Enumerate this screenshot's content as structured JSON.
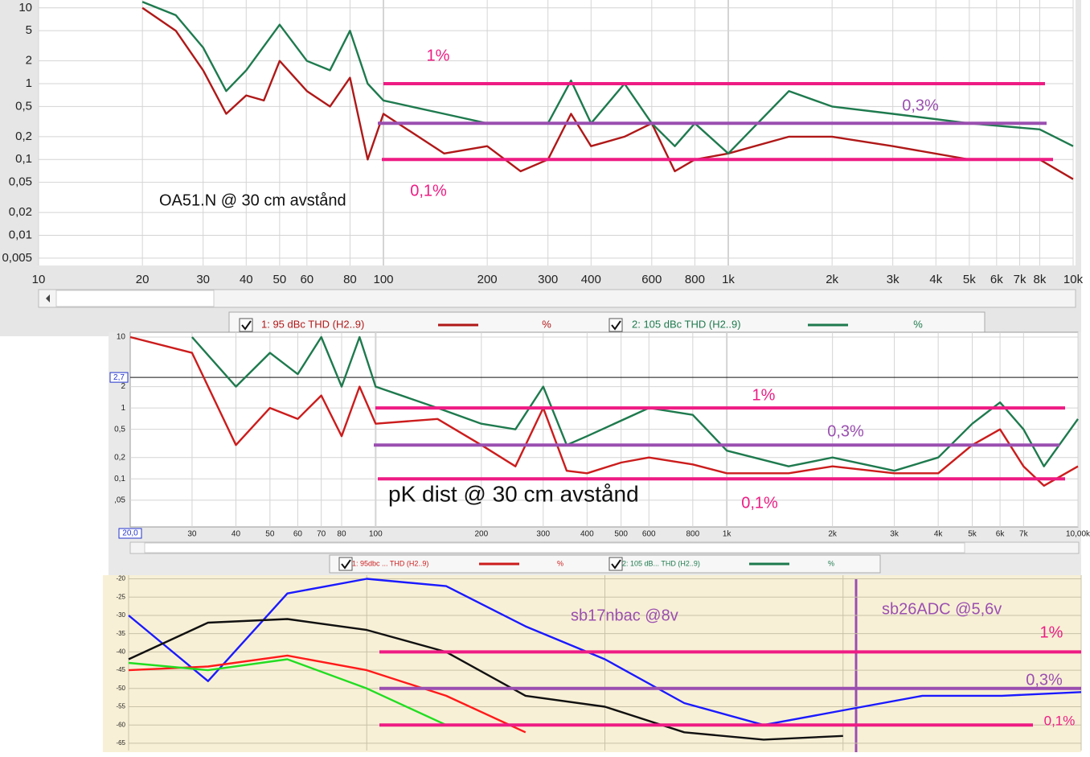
{
  "chart_data": [
    {
      "type": "line",
      "xscale": "log",
      "yscale": "log",
      "grid": true,
      "xlim": [
        10,
        10000
      ],
      "ylim": [
        0.004,
        12.7
      ],
      "xticks": [
        10,
        20,
        30,
        40,
        50,
        60,
        80,
        100,
        200,
        300,
        400,
        600,
        800,
        {
          "value": 1000,
          "label": "1k"
        },
        {
          "value": 2000,
          "label": "2k"
        },
        {
          "value": 3000,
          "label": "3k"
        },
        {
          "value": 4000,
          "label": "4k"
        },
        {
          "value": 5000,
          "label": "5k"
        },
        {
          "value": 6000,
          "label": "6k"
        },
        {
          "value": 7000,
          "label": "7k"
        },
        {
          "value": 8000,
          "label": "8k"
        },
        {
          "value": 10000,
          "label": "10k"
        }
      ],
      "yticks": [
        10,
        5,
        2,
        1,
        {
          "value": 0.5,
          "label": "0,5"
        },
        {
          "value": 0.2,
          "label": "0,2"
        },
        {
          "value": 0.1,
          "label": "0,1"
        },
        {
          "value": 0.05,
          "label": "0,05"
        },
        {
          "value": 0.02,
          "label": "0,02"
        },
        {
          "value": 0.01,
          "label": "0,01"
        },
        {
          "value": 0.005,
          "label": "0,005"
        }
      ],
      "series": [
        {
          "name": "1: 95 dBc THD (H2..9)",
          "unit": "%",
          "color": "#b01818",
          "x": [
            20,
            25,
            30,
            35,
            40,
            45,
            50,
            60,
            70,
            80,
            90,
            100,
            150,
            200,
            250,
            300,
            350,
            400,
            500,
            600,
            700,
            800,
            1000,
            1500,
            2000,
            3000,
            5000,
            8000,
            10000
          ],
          "values": [
            10,
            5,
            1.5,
            0.4,
            0.7,
            0.6,
            2,
            0.8,
            0.5,
            1.2,
            0.1,
            0.4,
            0.12,
            0.15,
            0.07,
            0.1,
            0.4,
            0.15,
            0.2,
            0.3,
            0.07,
            0.1,
            0.12,
            0.2,
            0.2,
            0.15,
            0.1,
            0.1,
            0.055
          ]
        },
        {
          "name": "2: 105 dBc THD (H2..9)",
          "unit": "%",
          "color": "#1e7a4e",
          "x": [
            20,
            25,
            30,
            35,
            40,
            50,
            60,
            70,
            80,
            90,
            100,
            150,
            200,
            300,
            350,
            400,
            500,
            600,
            700,
            800,
            1000,
            1500,
            2000,
            3000,
            5000,
            8000,
            10000
          ],
          "values": [
            12,
            8,
            3,
            0.8,
            1.5,
            6,
            2,
            1.5,
            5,
            1,
            0.6,
            0.4,
            0.3,
            0.3,
            1.1,
            0.3,
            1,
            0.3,
            0.15,
            0.3,
            0.12,
            0.8,
            0.5,
            0.4,
            0.3,
            0.25,
            0.15
          ]
        }
      ],
      "ref_lines": [
        {
          "value": 1,
          "color": "#ee1c84"
        },
        {
          "value": 0.3,
          "color": "#9b4fb0"
        },
        {
          "value": 0.1,
          "color": "#ee1c84"
        }
      ],
      "annotations": [
        "1%",
        "0,3%",
        "0,1%",
        "OA51.N @ 30 cm avstånd"
      ]
    },
    {
      "type": "line",
      "xscale": "log",
      "yscale": "log",
      "grid": true,
      "xlim": [
        20,
        10000
      ],
      "ylim": [
        0.021,
        11.7
      ],
      "xticks": [
        30,
        40,
        50,
        60,
        70,
        80,
        100,
        200,
        300,
        400,
        500,
        600,
        800,
        {
          "value": 1000,
          "label": "1k"
        },
        {
          "value": 2000,
          "label": "2k"
        },
        {
          "value": 3000,
          "label": "3k"
        },
        {
          "value": 4000,
          "label": "4k"
        },
        {
          "value": 5000,
          "label": "5k"
        },
        {
          "value": 6000,
          "label": "6k"
        },
        {
          "value": 7000,
          "label": "7k"
        },
        {
          "value": 10000,
          "label": "10,00k"
        }
      ],
      "yticks": [
        10,
        2,
        1,
        {
          "value": 0.5,
          "label": "0,5"
        },
        {
          "value": 0.2,
          "label": "0,2"
        },
        {
          "value": 0.1,
          "label": "0,1"
        },
        {
          "value": 0.05,
          "label": ",05"
        }
      ],
      "cursor": {
        "value": 2.7,
        "label": "2,7"
      },
      "x_start_label": "20,0",
      "series": [
        {
          "name": "1: 95dbc ... THD (H2..9)",
          "unit": "%",
          "color": "#cc1c1c",
          "x": [
            20,
            30,
            40,
            50,
            60,
            70,
            80,
            90,
            100,
            150,
            200,
            250,
            300,
            350,
            400,
            500,
            600,
            800,
            1000,
            1500,
            2000,
            3000,
            4000,
            5000,
            6000,
            7000,
            8000,
            10000
          ],
          "values": [
            10,
            6,
            0.3,
            1,
            0.7,
            1.5,
            0.4,
            2,
            0.6,
            0.7,
            0.3,
            0.15,
            1,
            0.13,
            0.12,
            0.17,
            0.2,
            0.16,
            0.12,
            0.12,
            0.15,
            0.12,
            0.12,
            0.3,
            0.5,
            0.15,
            0.08,
            0.15
          ]
        },
        {
          "name": "2: 105 dB... THD (H2..9)",
          "unit": "%",
          "color": "#1e7a4e",
          "x": [
            30,
            40,
            50,
            60,
            70,
            80,
            90,
            100,
            150,
            200,
            250,
            300,
            350,
            400,
            600,
            800,
            1000,
            1500,
            2000,
            3000,
            4000,
            5000,
            6000,
            7000,
            8000,
            10000
          ],
          "values": [
            10,
            2,
            6,
            3,
            10,
            2,
            10,
            2,
            1,
            0.6,
            0.5,
            2,
            0.3,
            0.4,
            1,
            0.8,
            0.25,
            0.15,
            0.2,
            0.13,
            0.2,
            0.6,
            1.2,
            0.5,
            0.15,
            0.7
          ]
        }
      ],
      "ref_lines": [
        {
          "value": 1,
          "color": "#ee1c84"
        },
        {
          "value": 0.3,
          "color": "#9b4fb0"
        },
        {
          "value": 0.1,
          "color": "#ee1c84"
        }
      ],
      "annotations": [
        "1%",
        "0,3%",
        "0,1%",
        "pK dist @ 30 cm avstånd"
      ]
    },
    {
      "type": "line",
      "grid": true,
      "categories": [
        null,
        null,
        null,
        null,
        null,
        null,
        null,
        null,
        null,
        null,
        null,
        null,
        null
      ],
      "ylim": [
        -67,
        -19
      ],
      "yticks": [
        -20,
        -25,
        -30,
        -35,
        -40,
        -45,
        -50,
        -55,
        -60,
        -65
      ],
      "series": [
        {
          "color": "#1a1aff",
          "values": [
            -30,
            -48,
            -24,
            -20,
            -22,
            -33,
            -42,
            -54,
            -60,
            -56,
            -52,
            -52,
            -51
          ]
        },
        {
          "color": "#111111",
          "values": [
            -42,
            -32,
            -31,
            -34,
            -40,
            -52,
            -55,
            -62,
            -64,
            -63,
            null,
            null,
            null
          ]
        },
        {
          "color": "#ff1a1a",
          "values": [
            -45,
            -44,
            -41,
            -45,
            -52,
            -62,
            null,
            null,
            null,
            null,
            null,
            null,
            null
          ]
        },
        {
          "color": "#22dd22",
          "values": [
            -43,
            -45,
            -42,
            -50,
            -60,
            null,
            null,
            null,
            null,
            null,
            null,
            null,
            null
          ]
        }
      ],
      "ref_lines": [
        {
          "value": -40,
          "color": "#ee1c84"
        },
        {
          "value": -50,
          "color": "#9b4fb0"
        },
        {
          "value": -60,
          "color": "#ee1c84"
        }
      ],
      "annotations": [
        "sb17nbac @8v",
        "sb26ADC @5,6v",
        "1%",
        "0,3%",
        "0,1%"
      ]
    }
  ]
}
